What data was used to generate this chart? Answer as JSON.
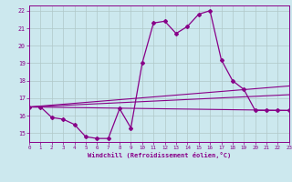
{
  "title": "",
  "xlabel": "Windchill (Refroidissement éolien,°C)",
  "bg_color": "#cce8ee",
  "grid_color": "#b0c8c8",
  "line_color": "#880088",
  "x_min": 0,
  "x_max": 23,
  "y_min": 14.5,
  "y_max": 22.3,
  "x_ticks": [
    0,
    1,
    2,
    3,
    4,
    5,
    6,
    7,
    8,
    9,
    10,
    11,
    12,
    13,
    14,
    15,
    16,
    17,
    18,
    19,
    20,
    21,
    22,
    23
  ],
  "y_ticks": [
    15,
    16,
    17,
    18,
    19,
    20,
    21,
    22
  ],
  "series1_x": [
    0,
    1,
    2,
    3,
    4,
    5,
    6,
    7,
    8,
    9,
    10,
    11,
    12,
    13,
    14,
    15,
    16,
    17,
    18,
    19,
    20,
    21,
    22,
    23
  ],
  "series1_y": [
    16.5,
    16.5,
    15.9,
    15.8,
    15.5,
    14.8,
    14.7,
    14.7,
    16.4,
    15.3,
    19.0,
    21.3,
    21.4,
    20.7,
    21.1,
    21.8,
    22.0,
    19.2,
    18.0,
    17.5,
    16.3,
    16.3,
    16.3,
    16.3
  ],
  "series2_x": [
    0,
    23
  ],
  "series2_y": [
    16.5,
    16.3
  ],
  "series3_x": [
    0,
    23
  ],
  "series3_y": [
    16.5,
    17.7
  ],
  "series4_x": [
    0,
    23
  ],
  "series4_y": [
    16.5,
    17.2
  ]
}
